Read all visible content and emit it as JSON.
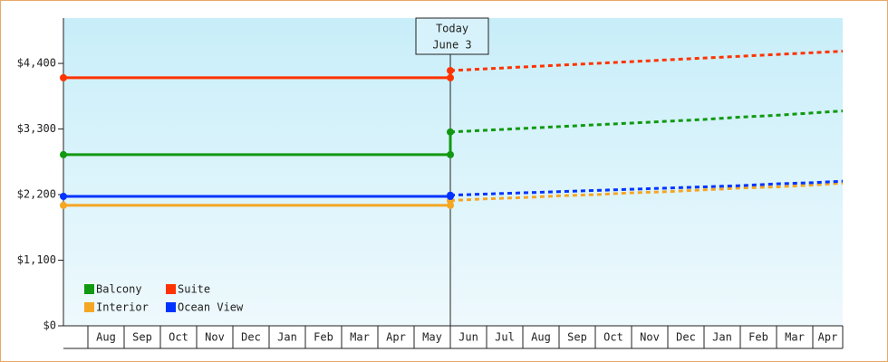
{
  "chart_data": {
    "type": "line",
    "categories": [
      null,
      "Aug",
      "Sep",
      "Oct",
      "Nov",
      "Dec",
      "Jan",
      "Feb",
      "Mar",
      "Apr",
      "May",
      "Jun",
      "Jul",
      "Aug",
      "Sep",
      "Oct",
      "Nov",
      "Dec",
      "Jan",
      "Feb",
      "Mar",
      "Apr"
    ],
    "series": [
      {
        "name": "Balcony",
        "color": "#119911",
        "values": [
          2870,
          2870,
          2870,
          2870,
          2870,
          2870,
          2870,
          2870,
          2870,
          2870,
          2870,
          null,
          null,
          null,
          null,
          null,
          null,
          null,
          null,
          null,
          null,
          null
        ],
        "forecast": [
          null,
          null,
          null,
          null,
          null,
          null,
          null,
          null,
          null,
          null,
          3250,
          3280,
          3310,
          3340,
          3370,
          3400,
          3430,
          3460,
          3500,
          3530,
          3570,
          3610
        ]
      },
      {
        "name": "Suite",
        "color": "#ff3300",
        "values": [
          4160,
          4160,
          4160,
          4160,
          4160,
          4160,
          4160,
          4160,
          4160,
          4160,
          4160,
          null,
          null,
          null,
          null,
          null,
          null,
          null,
          null,
          null,
          null,
          null
        ],
        "forecast": [
          null,
          null,
          null,
          null,
          null,
          null,
          null,
          null,
          null,
          null,
          4280,
          4310,
          4340,
          4370,
          4400,
          4430,
          4460,
          4490,
          4520,
          4550,
          4580,
          4610
        ]
      },
      {
        "name": "Interior",
        "color": "#f5a623",
        "values": [
          2020,
          2020,
          2020,
          2020,
          2020,
          2020,
          2020,
          2020,
          2020,
          2020,
          2020,
          null,
          null,
          null,
          null,
          null,
          null,
          null,
          null,
          null,
          null,
          null
        ],
        "forecast": [
          null,
          null,
          null,
          null,
          null,
          null,
          null,
          null,
          null,
          null,
          2100,
          2130,
          2150,
          2180,
          2200,
          2230,
          2250,
          2280,
          2310,
          2330,
          2360,
          2400
        ]
      },
      {
        "name": "Ocean View",
        "color": "#0033ff",
        "values": [
          2170,
          2170,
          2170,
          2170,
          2170,
          2170,
          2170,
          2170,
          2170,
          2170,
          2170,
          null,
          null,
          null,
          null,
          null,
          null,
          null,
          null,
          null,
          null,
          null
        ],
        "forecast": [
          null,
          null,
          null,
          null,
          null,
          null,
          null,
          null,
          null,
          null,
          2190,
          2210,
          2230,
          2250,
          2270,
          2290,
          2310,
          2330,
          2350,
          2380,
          2400,
          2430
        ]
      }
    ],
    "annotation": [
      "Today",
      "June 3"
    ],
    "ylim": [
      0,
      5160
    ],
    "yticks": [
      {
        "value": 0,
        "label": "$0"
      },
      {
        "value": 1100,
        "label": "$1,100"
      },
      {
        "value": 2200,
        "label": "$2,200"
      },
      {
        "value": 3300,
        "label": "$3,300"
      },
      {
        "value": 4400,
        "label": "$4,400"
      }
    ],
    "legend": "bottom-left"
  }
}
